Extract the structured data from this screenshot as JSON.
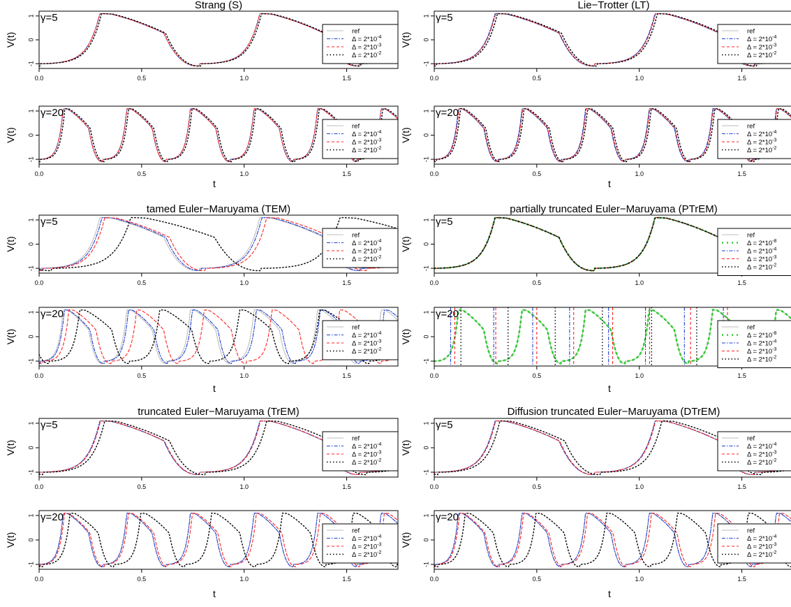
{
  "figure": {
    "ylabel": "V(t)",
    "xlabel": "t",
    "x_ticks": [
      "0.0",
      "0.5",
      "1.0",
      "1.5"
    ],
    "y_ticks": [
      "-1",
      "0",
      "1"
    ],
    "gamma_labels": [
      "γ=5",
      "γ=20"
    ],
    "delta_labels": {
      "ref": "ref",
      "d8": "Δ = 2*10",
      "d8_exp": "-8",
      "d4": "Δ = 2*10",
      "d4_exp": "-4",
      "d3": "Δ = 2*10",
      "d3_exp": "-3",
      "d2": "Δ = 2*10",
      "d2_exp": "-2"
    },
    "colors": {
      "ref": "#bdbdbd",
      "d8": "#33cc33",
      "d4": "#1f3fd0",
      "d3": "#ff2020",
      "d2": "#000000"
    }
  },
  "chart_data": [
    {
      "type": "line",
      "title": "Strang (S)",
      "xlim": [
        0,
        1.75
      ],
      "ylim": [
        -1.2,
        1.2
      ],
      "panels": [
        {
          "gamma": "γ=5",
          "series": [
            {
              "name": "ref",
              "period": 0.78,
              "shift": 0
            },
            {
              "name": "Δ = 2*10^-4",
              "period": 0.78,
              "shift": 0
            },
            {
              "name": "Δ = 2*10^-3",
              "period": 0.78,
              "shift": 0
            },
            {
              "name": "Δ = 2*10^-2",
              "period": 0.78,
              "shift": 0.008
            }
          ]
        },
        {
          "gamma": "γ=20",
          "series": [
            {
              "name": "ref",
              "period": 0.31,
              "shift": 0
            },
            {
              "name": "Δ = 2*10^-4",
              "period": 0.31,
              "shift": 0
            },
            {
              "name": "Δ = 2*10^-3",
              "period": 0.31,
              "shift": 0
            },
            {
              "name": "Δ = 2*10^-2",
              "period": 0.31,
              "shift": 0.008
            }
          ]
        }
      ]
    },
    {
      "type": "line",
      "title": "Lie−Trotter (LT)",
      "xlim": [
        0,
        1.75
      ],
      "ylim": [
        -1.2,
        1.2
      ],
      "panels": [
        {
          "gamma": "γ=5",
          "series": [
            {
              "name": "ref",
              "period": 0.78,
              "shift": 0
            },
            {
              "name": "Δ = 2*10^-4",
              "period": 0.78,
              "shift": 0
            },
            {
              "name": "Δ = 2*10^-3",
              "period": 0.78,
              "shift": 0.003
            },
            {
              "name": "Δ = 2*10^-2",
              "period": 0.78,
              "shift": 0.012
            }
          ]
        },
        {
          "gamma": "γ=20",
          "series": [
            {
              "name": "ref",
              "period": 0.31,
              "shift": 0
            },
            {
              "name": "Δ = 2*10^-4",
              "period": 0.31,
              "shift": 0
            },
            {
              "name": "Δ = 2*10^-3",
              "period": 0.31,
              "shift": 0.003
            },
            {
              "name": "Δ = 2*10^-2",
              "period": 0.31,
              "shift": 0.01
            }
          ]
        }
      ]
    },
    {
      "type": "line",
      "title": "tamed Euler−Maruyama (TEM)",
      "xlim": [
        0,
        1.75
      ],
      "ylim": [
        -1.2,
        1.2
      ],
      "panels": [
        {
          "gamma": "γ=5",
          "series": [
            {
              "name": "ref",
              "period": 0.78,
              "shift": 0
            },
            {
              "name": "Δ = 2*10^-4",
              "period": 0.78,
              "shift": 0.01
            },
            {
              "name": "Δ = 2*10^-3",
              "period": 0.79,
              "shift": 0.02
            },
            {
              "name": "Δ = 2*10^-2",
              "period": 1.02,
              "shift": 0.06
            }
          ]
        },
        {
          "gamma": "γ=20",
          "series": [
            {
              "name": "ref",
              "period": 0.31,
              "shift": 0
            },
            {
              "name": "Δ = 2*10^-4",
              "period": 0.312,
              "shift": 0.005
            },
            {
              "name": "Δ = 2*10^-3",
              "period": 0.33,
              "shift": 0.02
            },
            {
              "name": "Δ = 2*10^-2",
              "period": 0.39,
              "shift": 0.05
            }
          ]
        }
      ]
    },
    {
      "type": "line",
      "title": "partially truncated Euler−Maruyama (PTrEM)",
      "xlim": [
        0,
        1.75
      ],
      "ylim": [
        -1.2,
        1.2
      ],
      "panels": [
        {
          "gamma": "γ=5",
          "series": [
            {
              "name": "ref",
              "period": 0.78,
              "shift": 0
            },
            {
              "name": "Δ = 2*10^-8",
              "period": 0.78,
              "shift": 0
            },
            {
              "name": "Δ = 2*10^-4",
              "period": 0.78,
              "shift": 0
            },
            {
              "name": "Δ = 2*10^-3",
              "period": 0.78,
              "shift": 0
            },
            {
              "name": "Δ = 2*10^-2",
              "period": 0.78,
              "shift": 0
            }
          ]
        },
        {
          "gamma": "γ=20",
          "series": [
            {
              "name": "ref",
              "period": 0.31,
              "shift": 0
            },
            {
              "name": "Δ = 2*10^-8",
              "period": 0.31,
              "shift": 0
            },
            {
              "name": "Δ = 2*10^-4",
              "vlines": [
                0.08,
                0.29,
                0.48,
                0.66,
                0.85,
                1.03,
                1.22,
                1.41
              ]
            },
            {
              "name": "Δ = 2*10^-3",
              "vlines": [
                0.1,
                0.3,
                0.5,
                0.68,
                0.87,
                1.05,
                1.25,
                1.43
              ]
            },
            {
              "name": "Δ = 2*10^-2",
              "vlines": [
                0.13,
                0.36,
                0.59,
                0.82,
                1.06,
                1.28
              ]
            }
          ]
        }
      ]
    },
    {
      "type": "line",
      "title": "truncated Euler−Maruyama (TrEM)",
      "xlim": [
        0,
        1.75
      ],
      "ylim": [
        -1.2,
        1.2
      ],
      "panels": [
        {
          "gamma": "γ=5",
          "series": [
            {
              "name": "ref",
              "period": 0.78,
              "shift": 0
            },
            {
              "name": "Δ = 2*10^-4",
              "period": 0.78,
              "shift": 0
            },
            {
              "name": "Δ = 2*10^-3",
              "period": 0.78,
              "shift": 0.003
            },
            {
              "name": "Δ = 2*10^-2",
              "period": 0.79,
              "shift": 0.02
            }
          ]
        },
        {
          "gamma": "γ=20",
          "series": [
            {
              "name": "ref",
              "period": 0.31,
              "shift": 0
            },
            {
              "name": "Δ = 2*10^-4",
              "period": 0.31,
              "shift": 0
            },
            {
              "name": "Δ = 2*10^-3",
              "period": 0.312,
              "shift": 0.005
            },
            {
              "name": "Δ = 2*10^-2",
              "period": 0.345,
              "shift": 0.02
            }
          ]
        }
      ]
    },
    {
      "type": "line",
      "title": "Diffusion truncated Euler−Maruyama (DTrEM)",
      "xlim": [
        0,
        1.75
      ],
      "ylim": [
        -1.2,
        1.2
      ],
      "panels": [
        {
          "gamma": "γ=5",
          "series": [
            {
              "name": "ref",
              "period": 0.78,
              "shift": 0
            },
            {
              "name": "Δ = 2*10^-4",
              "period": 0.78,
              "shift": 0
            },
            {
              "name": "Δ = 2*10^-3",
              "period": 0.78,
              "shift": 0.003
            },
            {
              "name": "Δ = 2*10^-2",
              "period": 0.79,
              "shift": 0.02
            }
          ]
        },
        {
          "gamma": "γ=20",
          "series": [
            {
              "name": "ref",
              "period": 0.31,
              "shift": 0
            },
            {
              "name": "Δ = 2*10^-4",
              "period": 0.31,
              "shift": 0
            },
            {
              "name": "Δ = 2*10^-3",
              "period": 0.312,
              "shift": 0.005
            },
            {
              "name": "Δ = 2*10^-2",
              "period": 0.345,
              "shift": 0.02
            }
          ]
        }
      ]
    }
  ]
}
